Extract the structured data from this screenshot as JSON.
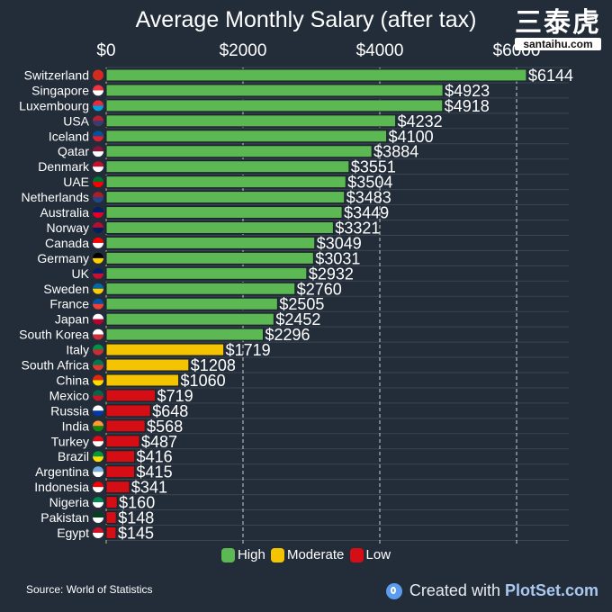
{
  "chart_data": {
    "type": "bar",
    "orientation": "horizontal",
    "title": "Average Monthly Salary (after tax)",
    "xlabel": "",
    "ylabel": "",
    "xlim": [
      0,
      6144
    ],
    "x_ticks": [
      0,
      2000,
      4000,
      6000
    ],
    "x_tick_labels": [
      "$0",
      "$2000",
      "$4000",
      "$6000"
    ],
    "grid": true,
    "legend_position": "bottom-center",
    "categories": [
      "Switzerland",
      "Singapore",
      "Luxembourg",
      "USA",
      "Iceland",
      "Qatar",
      "Denmark",
      "UAE",
      "Netherlands",
      "Australia",
      "Norway",
      "Canada",
      "Germany",
      "UK",
      "Sweden",
      "France",
      "Japan",
      "South Korea",
      "Italy",
      "South Africa",
      "China",
      "Mexico",
      "Russia",
      "India",
      "Turkey",
      "Brazil",
      "Argentina",
      "Indonesia",
      "Nigeria",
      "Pakistan",
      "Egypt"
    ],
    "values": [
      6144,
      4923,
      4918,
      4232,
      4100,
      3884,
      3551,
      3504,
      3483,
      3449,
      3321,
      3049,
      3031,
      2932,
      2760,
      2505,
      2452,
      2296,
      1719,
      1208,
      1060,
      719,
      648,
      568,
      487,
      416,
      415,
      341,
      160,
      148,
      145
    ],
    "value_labels": [
      "$6144",
      "$4923",
      "$4918",
      "$4232",
      "$4100",
      "$3884",
      "$3551",
      "$3504",
      "$3483",
      "$3449",
      "$3321",
      "$3049",
      "$3031",
      "$2932",
      "$2760",
      "$2505",
      "$2452",
      "$2296",
      "$1719",
      "$1208",
      "$1060",
      "$719",
      "$648",
      "$568",
      "$487",
      "$416",
      "$415",
      "$341",
      "$160",
      "$148",
      "$145"
    ],
    "groups": [
      "High",
      "High",
      "High",
      "High",
      "High",
      "High",
      "High",
      "High",
      "High",
      "High",
      "High",
      "High",
      "High",
      "High",
      "High",
      "High",
      "High",
      "High",
      "Moderate",
      "Moderate",
      "Moderate",
      "Low",
      "Low",
      "Low",
      "Low",
      "Low",
      "Low",
      "Low",
      "Low",
      "Low",
      "Low"
    ],
    "legend": [
      {
        "name": "High",
        "color": "#5cb853"
      },
      {
        "name": "Moderate",
        "color": "#f5c400"
      },
      {
        "name": "Low",
        "color": "#d40e14"
      }
    ]
  },
  "flags": [
    "switzerland-flag-icon",
    "singapore-flag-icon",
    "luxembourg-flag-icon",
    "usa-flag-icon",
    "iceland-flag-icon",
    "qatar-flag-icon",
    "denmark-flag-icon",
    "uae-flag-icon",
    "netherlands-flag-icon",
    "australia-flag-icon",
    "norway-flag-icon",
    "canada-flag-icon",
    "germany-flag-icon",
    "uk-flag-icon",
    "sweden-flag-icon",
    "france-flag-icon",
    "japan-flag-icon",
    "south-korea-flag-icon",
    "italy-flag-icon",
    "south-africa-flag-icon",
    "china-flag-icon",
    "mexico-flag-icon",
    "russia-flag-icon",
    "india-flag-icon",
    "turkey-flag-icon",
    "brazil-flag-icon",
    "argentina-flag-icon",
    "indonesia-flag-icon",
    "nigeria-flag-icon",
    "pakistan-flag-icon",
    "egypt-flag-icon"
  ],
  "flag_colors": [
    [
      "#d52b1e",
      "#d52b1e"
    ],
    [
      "#ef3340",
      "#ffffff"
    ],
    [
      "#ed2939",
      "#00a1de"
    ],
    [
      "#b22234",
      "#3c3b6e"
    ],
    [
      "#02529c",
      "#dc1e35"
    ],
    [
      "#8a1538",
      "#ffffff"
    ],
    [
      "#c8102e",
      "#ffffff"
    ],
    [
      "#00732f",
      "#ff0000"
    ],
    [
      "#ae1c28",
      "#21468b"
    ],
    [
      "#012169",
      "#e4002b"
    ],
    [
      "#ba0c2f",
      "#00205b"
    ],
    [
      "#ff0000",
      "#ffffff"
    ],
    [
      "#000000",
      "#ffce00"
    ],
    [
      "#012169",
      "#c8102e"
    ],
    [
      "#006aa7",
      "#fecc00"
    ],
    [
      "#0055a4",
      "#ef4135"
    ],
    [
      "#ffffff",
      "#bc002d"
    ],
    [
      "#ffffff",
      "#cd2e3a"
    ],
    [
      "#009246",
      "#ce2b37"
    ],
    [
      "#007a4d",
      "#de3831"
    ],
    [
      "#de2910",
      "#ffde00"
    ],
    [
      "#006847",
      "#ce1126"
    ],
    [
      "#ffffff",
      "#0039a6"
    ],
    [
      "#ff9933",
      "#138808"
    ],
    [
      "#e30a17",
      "#ffffff"
    ],
    [
      "#009c3b",
      "#ffdf00"
    ],
    [
      "#74acdf",
      "#ffffff"
    ],
    [
      "#ff0000",
      "#ffffff"
    ],
    [
      "#008751",
      "#ffffff"
    ],
    [
      "#01411c",
      "#ffffff"
    ],
    [
      "#ce1126",
      "#ffffff"
    ]
  ],
  "watermark": {
    "chinese": "三泰虎",
    "url": "santaihu.com"
  },
  "footer": {
    "source": "Source: World of Statistics",
    "credit_prefix": "Created with",
    "credit_brand": "PlotSet.com"
  }
}
